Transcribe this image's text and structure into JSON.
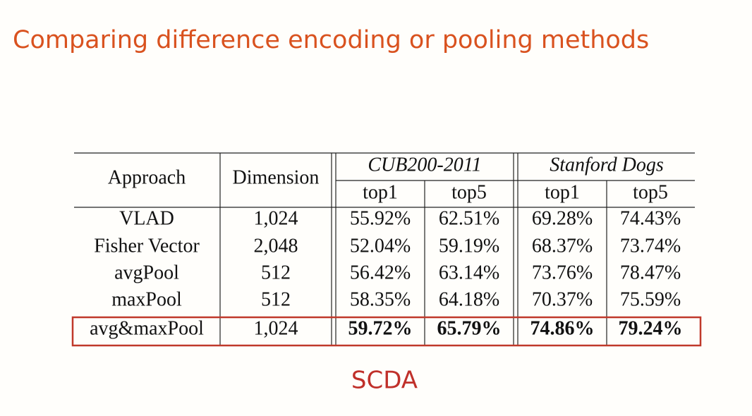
{
  "title": "Comparing difference encoding or pooling methods",
  "table": {
    "header": {
      "approach": "Approach",
      "dimension": "Dimension",
      "groups": [
        "CUB200-2011",
        "Stanford Dogs"
      ],
      "subcolumns": [
        "top1",
        "top5",
        "top1",
        "top5"
      ]
    },
    "rows": [
      [
        "VLAD",
        "1,024",
        "55.92%",
        "62.51%",
        "69.28%",
        "74.43%"
      ],
      [
        "Fisher Vector",
        "2,048",
        "52.04%",
        "59.19%",
        "68.37%",
        "73.74%"
      ],
      [
        "avgPool",
        "512",
        "56.42%",
        "63.14%",
        "73.76%",
        "78.47%"
      ],
      [
        "maxPool",
        "512",
        "58.35%",
        "64.18%",
        "70.37%",
        "75.59%"
      ],
      [
        "avg&maxPool",
        "1,024",
        "59.72%",
        "65.79%",
        "74.86%",
        "79.24%"
      ]
    ]
  },
  "footer": "SCDA"
}
